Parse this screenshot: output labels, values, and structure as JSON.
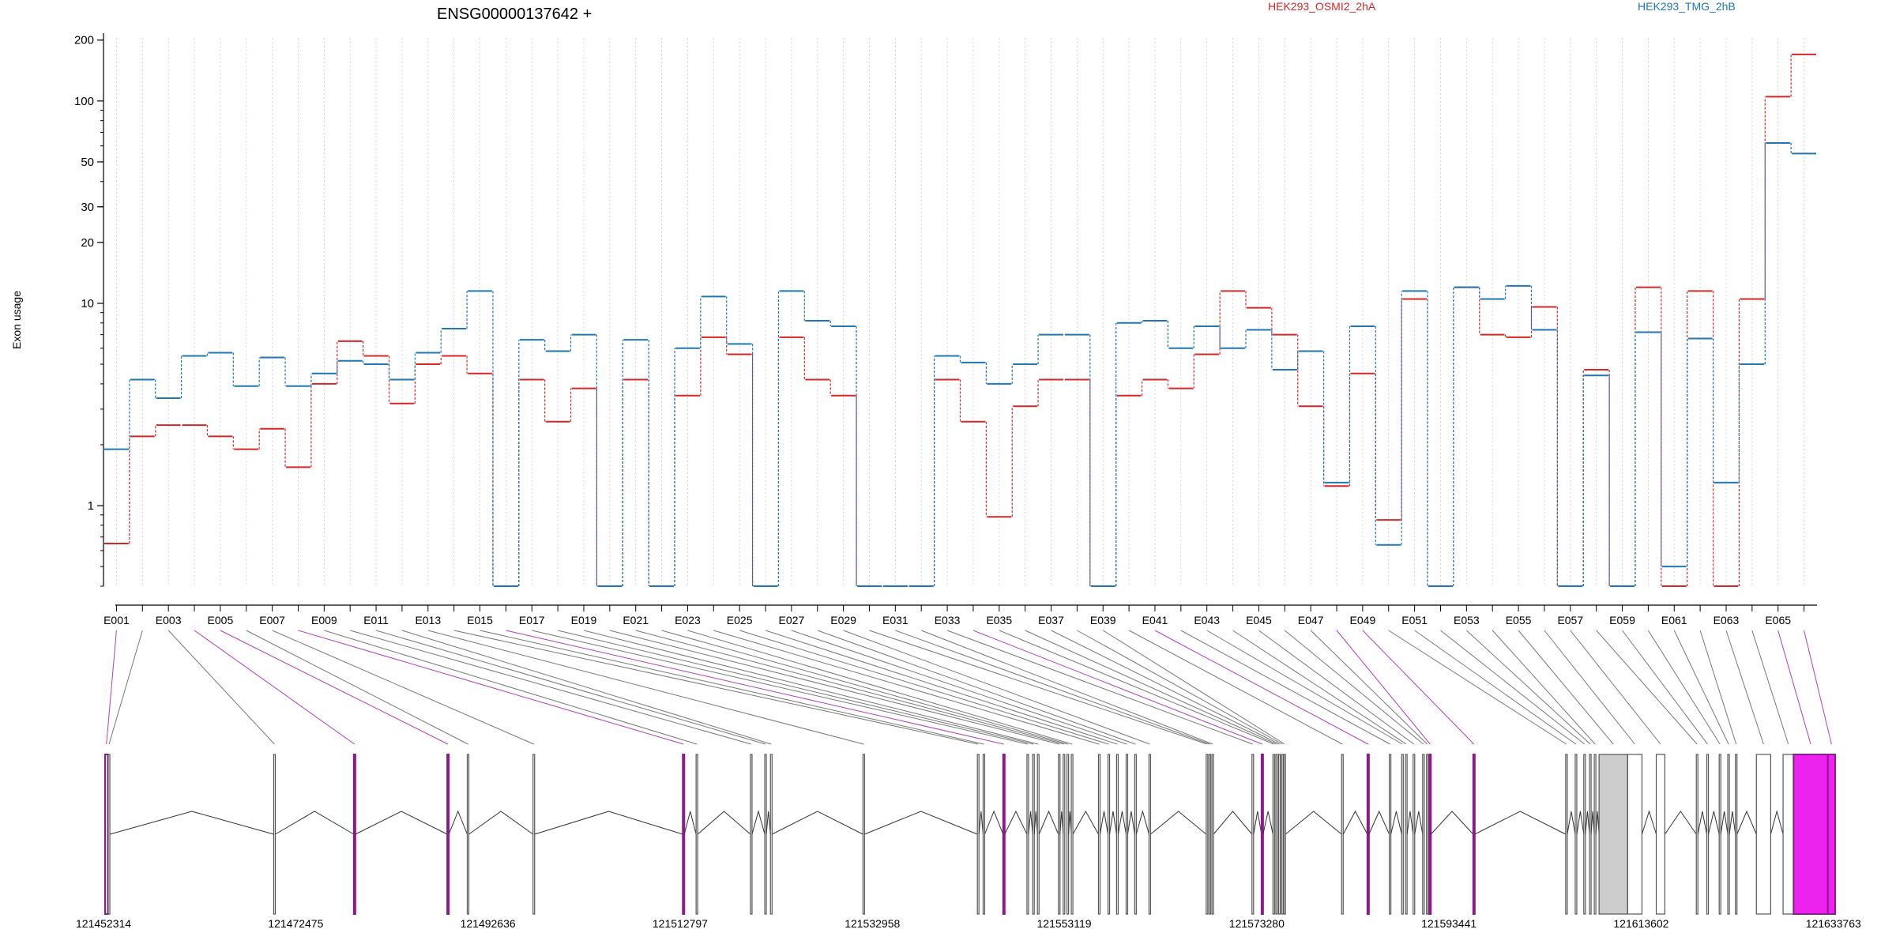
{
  "chart_data": {
    "type": "line",
    "title": "ENSG00000137642 +",
    "ylabel": "Exon usage",
    "xlabel": "",
    "yscale": "log",
    "ylim": [
      0.4,
      205
    ],
    "yticks": [
      1,
      10,
      20,
      30,
      50,
      100,
      200
    ],
    "grid": "vertical dotted lines at each exon",
    "legend_placement": "top",
    "categories": [
      "E001",
      "E002",
      "E003",
      "E004",
      "E005",
      "E006",
      "E007",
      "E008",
      "E009",
      "E010",
      "E011",
      "E012",
      "E013",
      "E014",
      "E015",
      "E016",
      "E017",
      "E018",
      "E019",
      "E020",
      "E021",
      "E022",
      "E023",
      "E024",
      "E025",
      "E026",
      "E027",
      "E028",
      "E029",
      "E030",
      "E031",
      "E032",
      "E033",
      "E034",
      "E035",
      "E036",
      "E037",
      "E038",
      "E039",
      "E040",
      "E041",
      "E042",
      "E043",
      "E044",
      "E045",
      "E046",
      "E047",
      "E048",
      "E049",
      "E050",
      "E051",
      "E052",
      "E053",
      "E054",
      "E055",
      "E056",
      "E057",
      "E058",
      "E059",
      "E060",
      "E061",
      "E062",
      "E063",
      "E064",
      "E065",
      "E066"
    ],
    "tick_labels": [
      "E001",
      "E003",
      "E005",
      "E007",
      "E009",
      "E011",
      "E013",
      "E015",
      "E017",
      "E019",
      "E021",
      "E023",
      "E025",
      "E027",
      "E029",
      "E031",
      "E033",
      "E035",
      "E037",
      "E039",
      "E041",
      "E043",
      "E045",
      "E047",
      "E049",
      "E051",
      "E053",
      "E055",
      "E057",
      "E059",
      "E061",
      "E063",
      "E065"
    ],
    "series": [
      {
        "name": "HEK293_OSMI2_2hA",
        "color": "#d62728",
        "values": [
          0.65,
          2.2,
          2.5,
          2.5,
          2.2,
          1.9,
          2.4,
          1.55,
          4,
          6.5,
          5.5,
          3.2,
          5,
          5.5,
          4.5,
          0.4,
          4.2,
          2.6,
          3.8,
          0.4,
          4.2,
          0.4,
          3.5,
          6.8,
          5.6,
          0.4,
          6.8,
          4.2,
          3.5,
          0.4,
          0.4,
          0.4,
          4.2,
          2.6,
          0.88,
          3.1,
          4.2,
          4.2,
          0.4,
          3.5,
          4.2,
          3.8,
          5.6,
          11.5,
          9.5,
          7,
          3.1,
          1.25,
          4.5,
          0.85,
          10.5,
          0.4,
          12,
          7,
          6.8,
          9.6,
          0.4,
          4.7,
          0.4,
          12,
          0.4,
          11.5,
          0.4,
          10.5,
          105,
          170
        ]
      },
      {
        "name": "HEK293_TMG_2hB",
        "color": "#1f77b4",
        "values": [
          1.9,
          4.2,
          3.4,
          5.5,
          5.7,
          3.9,
          5.4,
          3.9,
          4.5,
          5.2,
          5,
          4.2,
          5.7,
          7.5,
          11.5,
          0.4,
          6.6,
          5.8,
          7,
          0.4,
          6.6,
          0.4,
          6,
          10.8,
          6.3,
          0.4,
          11.5,
          8.2,
          7.7,
          0.4,
          0.4,
          0.4,
          5.5,
          5.1,
          4,
          5,
          7,
          7,
          0.4,
          8,
          8.2,
          6,
          7.7,
          6,
          7.4,
          4.7,
          5.8,
          1.3,
          7.7,
          0.64,
          11.5,
          0.4,
          12,
          10.5,
          12.2,
          7.4,
          0.4,
          4.4,
          0.4,
          7.2,
          0.5,
          6.7,
          1.3,
          5,
          62,
          55
        ]
      }
    ]
  },
  "gene_model": {
    "coordinates": [
      "121452314",
      "121472475",
      "121492636",
      "121512797",
      "121532958",
      "121553119",
      "121573280",
      "121593441",
      "121613602",
      "121633763"
    ],
    "coord_range": [
      121452314,
      121633763
    ],
    "colors": {
      "default_exon": "#555555",
      "significant": "#8b1a8b",
      "highlight_fill": "#ee22ee",
      "alt_fill": "#cccccc"
    },
    "exons": [
      {
        "id": "E001",
        "start": 121452314,
        "end": 121452600,
        "sig": true
      },
      {
        "id": "E002",
        "start": 121452650,
        "end": 121452800
      },
      {
        "id": "E003",
        "start": 121470000,
        "end": 121470150
      },
      {
        "id": "E004",
        "start": 121478400,
        "end": 121478550,
        "sig": true
      },
      {
        "id": "E005",
        "start": 121488200,
        "end": 121488350,
        "sig": true
      },
      {
        "id": "E006",
        "start": 121490300,
        "end": 121490450
      },
      {
        "id": "E007",
        "start": 121497200,
        "end": 121497350
      },
      {
        "id": "E008",
        "start": 121512900,
        "end": 121513050,
        "sig": true
      },
      {
        "id": "E009",
        "start": 121514300,
        "end": 121514450
      },
      {
        "id": "E010",
        "start": 121520000,
        "end": 121520150
      },
      {
        "id": "E011",
        "start": 121521500,
        "end": 121521650
      },
      {
        "id": "E012",
        "start": 121522100,
        "end": 121522250
      },
      {
        "id": "E013",
        "start": 121531800,
        "end": 121531950
      },
      {
        "id": "E014",
        "start": 121543800,
        "end": 121543950
      },
      {
        "id": "E015",
        "start": 121544400,
        "end": 121544550
      },
      {
        "id": "E016",
        "start": 121546500,
        "end": 121546650,
        "sig": true
      },
      {
        "id": "E017",
        "start": 121549000,
        "end": 121549150
      },
      {
        "id": "E018",
        "start": 121549600,
        "end": 121549750
      },
      {
        "id": "E019",
        "start": 121550100,
        "end": 121550250
      },
      {
        "id": "E020",
        "start": 121552300,
        "end": 121552450
      },
      {
        "id": "E021",
        "start": 121552800,
        "end": 121552950
      },
      {
        "id": "E022",
        "start": 121553200,
        "end": 121553350
      },
      {
        "id": "E023",
        "start": 121553650,
        "end": 121553800
      },
      {
        "id": "E024",
        "start": 121556500,
        "end": 121556650
      },
      {
        "id": "E025",
        "start": 121557500,
        "end": 121557650
      },
      {
        "id": "E026",
        "start": 121558400,
        "end": 121558550
      },
      {
        "id": "E027",
        "start": 121559400,
        "end": 121559550
      },
      {
        "id": "E028",
        "start": 121560300,
        "end": 121560450
      },
      {
        "id": "E029",
        "start": 121561800,
        "end": 121561950
      },
      {
        "id": "E030",
        "start": 121567800,
        "end": 121567950
      },
      {
        "id": "E031",
        "start": 121568100,
        "end": 121568250
      },
      {
        "id": "E032",
        "start": 121568400,
        "end": 121568550
      },
      {
        "id": "E033",
        "start": 121572600,
        "end": 121572750
      },
      {
        "id": "E034",
        "start": 121573600,
        "end": 121573750,
        "sig": true
      },
      {
        "id": "E035",
        "start": 121574800,
        "end": 121574950
      },
      {
        "id": "E036",
        "start": 121575100,
        "end": 121575250
      },
      {
        "id": "E037",
        "start": 121575400,
        "end": 121575550
      },
      {
        "id": "E038",
        "start": 121575700,
        "end": 121575850
      },
      {
        "id": "E039",
        "start": 121575950,
        "end": 121576100
      },
      {
        "id": "E040",
        "start": 121582000,
        "end": 121582150
      },
      {
        "id": "E041",
        "start": 121584700,
        "end": 121584850,
        "sig": true
      },
      {
        "id": "E042",
        "start": 121587000,
        "end": 121587150
      },
      {
        "id": "E043",
        "start": 121588300,
        "end": 121588450
      },
      {
        "id": "E044",
        "start": 121588700,
        "end": 121588850
      },
      {
        "id": "E045",
        "start": 121589500,
        "end": 121589650
      },
      {
        "id": "E046",
        "start": 121590500,
        "end": 121590650
      },
      {
        "id": "E047",
        "start": 121590900,
        "end": 121591050
      },
      {
        "id": "E048",
        "start": 121591200,
        "end": 121591350,
        "sig": true
      },
      {
        "id": "E049",
        "start": 121595800,
        "end": 121595950,
        "sig": true
      },
      {
        "id": "E050",
        "start": 121605500,
        "end": 121605650
      },
      {
        "id": "E051",
        "start": 121606500,
        "end": 121606650
      },
      {
        "id": "E052",
        "start": 121607400,
        "end": 121607550
      },
      {
        "id": "E053",
        "start": 121608000,
        "end": 121608150
      },
      {
        "id": "E054",
        "start": 121608500,
        "end": 121608650
      },
      {
        "id": "E055",
        "start": 121609000,
        "end": 121612000,
        "fill": "alt"
      },
      {
        "id": "E056",
        "start": 121612000,
        "end": 121613500
      },
      {
        "id": "E057",
        "start": 121615000,
        "end": 121615900
      },
      {
        "id": "E058",
        "start": 121619200,
        "end": 121619350
      },
      {
        "id": "E059",
        "start": 121620300,
        "end": 121620450
      },
      {
        "id": "E060",
        "start": 121621600,
        "end": 121621750
      },
      {
        "id": "E061",
        "start": 121622500,
        "end": 121622650
      },
      {
        "id": "E062",
        "start": 121623300,
        "end": 121623450
      },
      {
        "id": "E063",
        "start": 121625500,
        "end": 121627000
      },
      {
        "id": "E064",
        "start": 121628300,
        "end": 121629400
      },
      {
        "id": "E065",
        "start": 121629400,
        "end": 121633000,
        "sig": true,
        "fill": "highlight"
      },
      {
        "id": "E066",
        "start": 121633000,
        "end": 121633763,
        "sig": true,
        "fill": "highlight"
      }
    ]
  }
}
